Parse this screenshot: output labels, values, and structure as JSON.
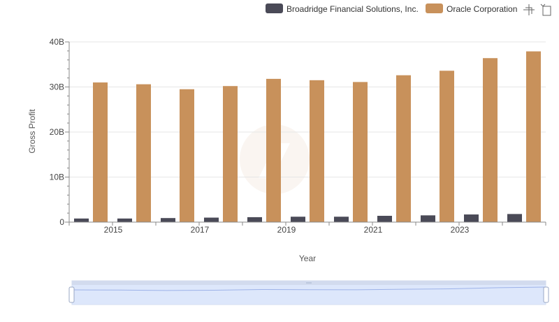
{
  "toolbar": {
    "zoom_icon": "crosshair-zoom-icon",
    "reset_icon": "reset-rotate-icon"
  },
  "chart_data": {
    "type": "bar",
    "categories": [
      "2014",
      "2015",
      "2016",
      "2017",
      "2018",
      "2019",
      "2020",
      "2021",
      "2022",
      "2023",
      "2024"
    ],
    "x_tick_labels": [
      "2015",
      "2017",
      "2019",
      "2021",
      "2023"
    ],
    "xlabel": "Year",
    "ylabel": "Gross Profit",
    "y_tick_labels": [
      "0",
      "10B",
      "20B",
      "30B",
      "40B"
    ],
    "ylim": [
      0,
      40000000000
    ],
    "y_unit_scale": 1000000000,
    "grid": true,
    "legend_position": "top-right",
    "series": [
      {
        "name": "Broadridge Financial Solutions, Inc.",
        "color": "#4a4a57",
        "values": [
          0.8,
          0.8,
          0.9,
          1.0,
          1.1,
          1.2,
          1.2,
          1.4,
          1.5,
          1.7,
          1.8
        ]
      },
      {
        "name": "Oracle Corporation",
        "color": "#c8915b",
        "values": [
          31.0,
          30.6,
          29.5,
          30.2,
          31.8,
          31.5,
          31.1,
          32.6,
          33.6,
          36.4,
          37.9
        ]
      }
    ]
  },
  "zoom_slider": {
    "start_fraction": 0,
    "end_fraction": 1
  }
}
